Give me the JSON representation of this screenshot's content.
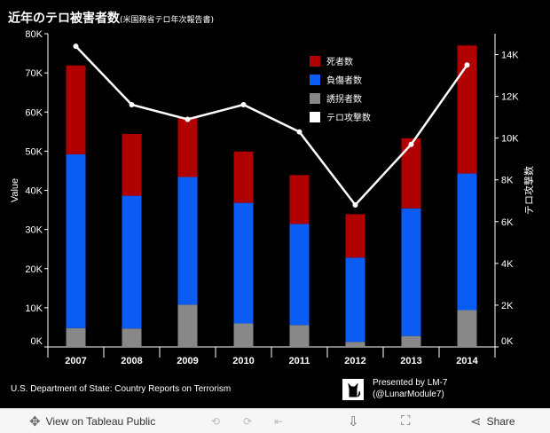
{
  "title": {
    "main": "近年のテロ被害者数",
    "sub": "(米国務省テロ年次報告書)"
  },
  "chart_data": {
    "type": "bar",
    "stacked": true,
    "categories": [
      "2007",
      "2008",
      "2009",
      "2010",
      "2011",
      "2012",
      "2013",
      "2014"
    ],
    "series": [
      {
        "name": "誘拐者数",
        "color": "#888888",
        "values": [
          4800,
          4700,
          10800,
          6000,
          5600,
          1300,
          2800,
          9400
        ]
      },
      {
        "name": "負傷者数",
        "color": "#0a5cf5",
        "values": [
          44400,
          33900,
          32600,
          30800,
          25800,
          21500,
          32600,
          34900
        ]
      },
      {
        "name": "死者数",
        "color": "#b00000",
        "values": [
          22700,
          15800,
          15300,
          13100,
          12500,
          11100,
          17900,
          32700
        ]
      }
    ],
    "line_series": {
      "name": "テロ攻撃数",
      "color": "#ffffff",
      "values": [
        14400,
        11600,
        10900,
        11600,
        10300,
        6800,
        9700,
        13500
      ]
    },
    "ylabel": "Value",
    "y2label": "テロ攻撃数",
    "ylim": [
      0,
      80000
    ],
    "y2lim": [
      0,
      15000
    ],
    "y_ticks": [
      "0K",
      "10K",
      "20K",
      "30K",
      "40K",
      "50K",
      "60K",
      "70K",
      "80K"
    ],
    "y2_ticks": [
      "0K",
      "2K",
      "4K",
      "6K",
      "8K",
      "10K",
      "12K",
      "14K"
    ],
    "legend_position": "top-right",
    "grid": false
  },
  "legend": [
    {
      "label": "死者数",
      "color": "#b00000"
    },
    {
      "label": "負傷者数",
      "color": "#0a5cf5"
    },
    {
      "label": "誘拐者数",
      "color": "#888888"
    },
    {
      "label": "テロ攻撃数",
      "color": "#ffffff"
    }
  ],
  "footer": {
    "source": "U.S. Department of State: Country Reports on Terrorism",
    "credit_line1": "Presented by LM-7",
    "credit_line2": "(@LunarModule7)"
  },
  "toolbar": {
    "view_label": "View on Tableau Public",
    "share_label": "Share",
    "icons": [
      "expand-icon",
      "undo-icon",
      "redo-icon",
      "revert-icon",
      "download-icon",
      "fullscreen-icon",
      "share-icon"
    ]
  }
}
